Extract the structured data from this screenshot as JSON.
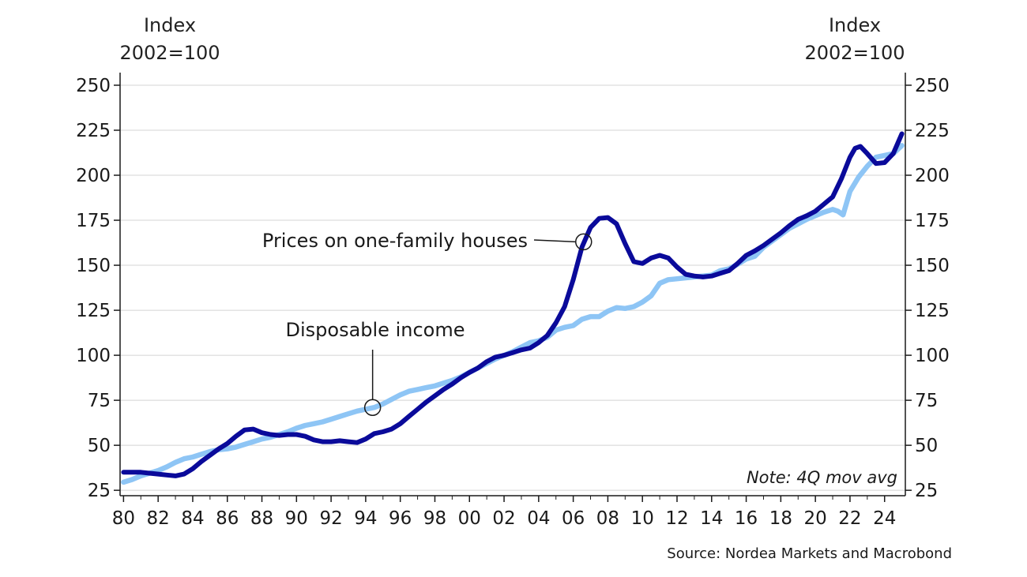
{
  "chart_data": {
    "type": "line",
    "left_axis_label": [
      "Index",
      "2002=100"
    ],
    "right_axis_label": [
      "Index",
      "2002=100"
    ],
    "ylim": [
      22,
      257
    ],
    "y_ticks": [
      25,
      50,
      75,
      100,
      125,
      150,
      175,
      200,
      225,
      250
    ],
    "x_range": [
      1979.8,
      2025.2
    ],
    "x_ticks": [
      1980,
      1982,
      1984,
      1986,
      1988,
      1990,
      1992,
      1994,
      1996,
      1998,
      2000,
      2002,
      2004,
      2006,
      2008,
      2010,
      2012,
      2014,
      2016,
      2018,
      2020,
      2022,
      2024
    ],
    "x_tick_labels": [
      "80",
      "82",
      "84",
      "86",
      "88",
      "90",
      "92",
      "94",
      "96",
      "98",
      "00",
      "02",
      "04",
      "06",
      "08",
      "10",
      "12",
      "14",
      "16",
      "18",
      "20",
      "22",
      "24"
    ],
    "grid": true,
    "series": [
      {
        "name": "Prices on one-family houses",
        "color": "#0a0a9a",
        "x": [
          1980,
          1980.5,
          1981,
          1981.5,
          1982,
          1982.5,
          1983,
          1983.5,
          1984,
          1984.5,
          1985,
          1985.5,
          1986,
          1986.5,
          1987,
          1987.5,
          1988,
          1988.5,
          1989,
          1989.5,
          1990,
          1990.5,
          1991,
          1991.5,
          1992,
          1992.5,
          1993,
          1993.5,
          1994,
          1994.5,
          1995,
          1995.5,
          1996,
          1996.5,
          1997,
          1997.5,
          1998,
          1998.5,
          1999,
          1999.5,
          2000,
          2000.5,
          2001,
          2001.5,
          2002,
          2002.5,
          2003,
          2003.5,
          2004,
          2004.5,
          2005,
          2005.5,
          2006,
          2006.5,
          2007,
          2007.5,
          2008,
          2008.5,
          2009,
          2009.5,
          2010,
          2010.5,
          2011,
          2011.5,
          2012,
          2012.5,
          2013,
          2013.5,
          2014,
          2014.5,
          2015,
          2015.5,
          2016,
          2016.5,
          2017,
          2017.5,
          2018,
          2018.5,
          2019,
          2019.5,
          2020,
          2020.5,
          2021,
          2021.5,
          2022,
          2022.3,
          2022.6,
          2023,
          2023.5,
          2024,
          2024.5,
          2025
        ],
        "y": [
          35,
          35,
          35,
          34.5,
          34,
          33.5,
          33,
          34,
          37,
          41,
          44.5,
          48,
          51,
          55,
          58.5,
          59,
          57,
          56,
          55.5,
          56,
          56,
          55,
          53,
          52,
          52,
          52.5,
          52,
          51.5,
          53.5,
          56.5,
          57.5,
          59,
          62,
          66,
          70,
          74,
          77.5,
          81,
          84,
          87.5,
          90.5,
          93,
          96.5,
          99,
          100,
          101.5,
          103,
          104,
          107,
          111,
          118,
          127,
          142,
          160,
          171,
          176,
          176.5,
          173,
          162,
          152,
          151,
          154,
          155.5,
          154,
          149,
          145,
          144,
          143.5,
          144,
          145.5,
          147,
          151,
          155.5,
          158,
          161,
          164.5,
          168,
          172,
          175.5,
          177.5,
          180,
          184,
          188,
          198,
          210,
          215,
          216,
          212,
          206.5,
          207,
          212,
          223
        ]
      },
      {
        "name": "Disposable income",
        "color": "#8ec5f5",
        "x": [
          1980,
          1980.5,
          1981,
          1981.5,
          1982,
          1982.5,
          1983,
          1983.5,
          1984,
          1984.5,
          1985,
          1985.5,
          1986,
          1986.5,
          1987,
          1987.5,
          1988,
          1988.5,
          1989,
          1989.5,
          1990,
          1990.5,
          1991,
          1991.5,
          1992,
          1992.5,
          1993,
          1993.5,
          1994,
          1994.5,
          1995,
          1995.5,
          1996,
          1996.5,
          1997,
          1997.5,
          1998,
          1998.5,
          1999,
          1999.5,
          2000,
          2000.5,
          2001,
          2001.5,
          2002,
          2002.5,
          2003,
          2003.5,
          2004,
          2004.5,
          2005,
          2005.5,
          2006,
          2006.5,
          2007,
          2007.5,
          2008,
          2008.5,
          2009,
          2009.5,
          2010,
          2010.5,
          2011,
          2011.5,
          2012,
          2012.5,
          2013,
          2013.5,
          2014,
          2014.5,
          2015,
          2015.5,
          2016,
          2016.5,
          2017,
          2017.5,
          2018,
          2018.5,
          2019,
          2019.5,
          2020,
          2020.5,
          2021,
          2021.3,
          2021.6,
          2022,
          2022.5,
          2023,
          2023.5,
          2024,
          2024.5,
          2025
        ],
        "y": [
          29.5,
          31,
          33,
          34.5,
          36,
          38,
          40.5,
          42.5,
          43.5,
          45,
          46.5,
          47.5,
          48,
          49,
          50.5,
          52,
          53.5,
          54.5,
          56,
          57.5,
          59.5,
          61,
          62,
          63,
          64.5,
          66,
          67.5,
          69,
          70,
          71,
          73,
          75.5,
          78,
          80,
          81,
          82,
          83,
          84.5,
          86,
          88,
          90.5,
          93,
          95.5,
          98,
          100,
          102,
          104.5,
          107,
          108,
          110,
          114,
          115.5,
          116.5,
          120,
          121.5,
          121.5,
          124.5,
          126.5,
          126,
          127,
          129.5,
          133,
          140,
          142,
          142.5,
          143,
          143.5,
          144,
          144.5,
          147,
          148,
          150.5,
          153.5,
          155,
          160,
          163.5,
          167,
          170.5,
          173,
          175.5,
          177.5,
          179.5,
          181,
          180,
          178,
          191,
          199,
          205,
          210,
          211,
          212,
          216.5
        ]
      }
    ],
    "annotations": {
      "houses": "Prices on one-family houses",
      "income": "Disposable income"
    },
    "note": "Note: 4Q mov avg",
    "source": "Source: Nordea Markets and Macrobond"
  }
}
